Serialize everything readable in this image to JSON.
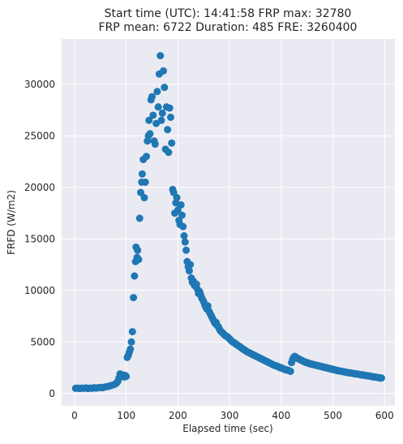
{
  "chart_data": {
    "type": "scatter",
    "title_line1": "Start time (UTC): 14:41:58 FRP max: 32780",
    "title_line2": "FRP mean: 6722 Duration: 485 FRE: 3260400",
    "xlabel": "Elapsed time (sec)",
    "ylabel": "FRFD (W/m2)",
    "xlim": [
      -25,
      620
    ],
    "ylim": [
      -1200,
      34400
    ],
    "xticks": [
      0,
      100,
      200,
      300,
      400,
      500,
      600
    ],
    "yticks": [
      0,
      5000,
      10000,
      15000,
      20000,
      25000,
      30000
    ],
    "grid": true,
    "marker_color": "#1f77b4",
    "background_color": "#eaeaf2",
    "points": [
      [
        2,
        500
      ],
      [
        6,
        520
      ],
      [
        10,
        480
      ],
      [
        14,
        520
      ],
      [
        18,
        500
      ],
      [
        22,
        540
      ],
      [
        26,
        480
      ],
      [
        30,
        520
      ],
      [
        34,
        500
      ],
      [
        38,
        560
      ],
      [
        42,
        520
      ],
      [
        46,
        560
      ],
      [
        50,
        580
      ],
      [
        54,
        560
      ],
      [
        58,
        620
      ],
      [
        62,
        660
      ],
      [
        66,
        700
      ],
      [
        70,
        760
      ],
      [
        74,
        820
      ],
      [
        78,
        900
      ],
      [
        81,
        1000
      ],
      [
        84,
        1200
      ],
      [
        86,
        1500
      ],
      [
        88,
        1900
      ],
      [
        90,
        1700
      ],
      [
        93,
        1800
      ],
      [
        96,
        1600
      ],
      [
        98,
        1750
      ],
      [
        100,
        1650
      ],
      [
        102,
        3500
      ],
      [
        104,
        3700
      ],
      [
        106,
        4000
      ],
      [
        108,
        4300
      ],
      [
        110,
        5000
      ],
      [
        112,
        6000
      ],
      [
        114,
        9300
      ],
      [
        116,
        11400
      ],
      [
        118,
        12800
      ],
      [
        119,
        14200
      ],
      [
        121,
        13200
      ],
      [
        122,
        13900
      ],
      [
        124,
        13000
      ],
      [
        126,
        17000
      ],
      [
        128,
        19500
      ],
      [
        130,
        20500
      ],
      [
        131,
        21300
      ],
      [
        133,
        22700
      ],
      [
        135,
        19000
      ],
      [
        137,
        20500
      ],
      [
        139,
        23000
      ],
      [
        141,
        24500
      ],
      [
        143,
        25000
      ],
      [
        144,
        26500
      ],
      [
        146,
        25200
      ],
      [
        148,
        28500
      ],
      [
        150,
        28800
      ],
      [
        152,
        27000
      ],
      [
        154,
        24500
      ],
      [
        156,
        24200
      ],
      [
        158,
        26200
      ],
      [
        160,
        29300
      ],
      [
        162,
        27800
      ],
      [
        164,
        31000
      ],
      [
        166,
        32780
      ],
      [
        168,
        26500
      ],
      [
        170,
        27200
      ],
      [
        172,
        31300
      ],
      [
        174,
        29700
      ],
      [
        176,
        23700
      ],
      [
        178,
        27800
      ],
      [
        180,
        25600
      ],
      [
        182,
        23400
      ],
      [
        184,
        27700
      ],
      [
        186,
        26800
      ],
      [
        188,
        24300
      ],
      [
        190,
        19800
      ],
      [
        192,
        19500
      ],
      [
        194,
        17500
      ],
      [
        196,
        18500
      ],
      [
        198,
        19000
      ],
      [
        200,
        17800
      ],
      [
        202,
        16800
      ],
      [
        204,
        16400
      ],
      [
        206,
        18300
      ],
      [
        208,
        17300
      ],
      [
        210,
        16200
      ],
      [
        212,
        15300
      ],
      [
        214,
        14700
      ],
      [
        216,
        13900
      ],
      [
        218,
        12800
      ],
      [
        220,
        12300
      ],
      [
        222,
        11900
      ],
      [
        224,
        12500
      ],
      [
        226,
        11200
      ],
      [
        228,
        10800
      ],
      [
        230,
        10900
      ],
      [
        232,
        10500
      ],
      [
        234,
        10400
      ],
      [
        236,
        10600
      ],
      [
        238,
        10100
      ],
      [
        240,
        9700
      ],
      [
        242,
        9900
      ],
      [
        244,
        9600
      ],
      [
        246,
        9300
      ],
      [
        248,
        9100
      ],
      [
        250,
        8900
      ],
      [
        252,
        8600
      ],
      [
        254,
        8400
      ],
      [
        256,
        8200
      ],
      [
        258,
        8500
      ],
      [
        260,
        8000
      ],
      [
        262,
        7800
      ],
      [
        264,
        7600
      ],
      [
        266,
        7400
      ],
      [
        268,
        7200
      ],
      [
        270,
        7000
      ],
      [
        272,
        6800
      ],
      [
        274,
        6900
      ],
      [
        276,
        6600
      ],
      [
        278,
        6500
      ],
      [
        280,
        6300
      ],
      [
        282,
        6100
      ],
      [
        284,
        6000
      ],
      [
        286,
        5900
      ],
      [
        288,
        5800
      ],
      [
        290,
        5700
      ],
      [
        292,
        5600
      ],
      [
        294,
        5550
      ],
      [
        296,
        5500
      ],
      [
        298,
        5400
      ],
      [
        300,
        5300
      ],
      [
        302,
        5200
      ],
      [
        304,
        5100
      ],
      [
        306,
        5000
      ],
      [
        308,
        4950
      ],
      [
        310,
        4900
      ],
      [
        312,
        4800
      ],
      [
        314,
        4750
      ],
      [
        316,
        4650
      ],
      [
        318,
        4600
      ],
      [
        320,
        4550
      ],
      [
        322,
        4450
      ],
      [
        324,
        4400
      ],
      [
        326,
        4300
      ],
      [
        328,
        4250
      ],
      [
        330,
        4200
      ],
      [
        332,
        4100
      ],
      [
        334,
        4050
      ],
      [
        336,
        4000
      ],
      [
        338,
        3950
      ],
      [
        340,
        3900
      ],
      [
        342,
        3850
      ],
      [
        344,
        3800
      ],
      [
        346,
        3750
      ],
      [
        348,
        3700
      ],
      [
        350,
        3650
      ],
      [
        352,
        3600
      ],
      [
        354,
        3550
      ],
      [
        356,
        3500
      ],
      [
        358,
        3450
      ],
      [
        360,
        3400
      ],
      [
        362,
        3350
      ],
      [
        364,
        3300
      ],
      [
        366,
        3250
      ],
      [
        368,
        3200
      ],
      [
        370,
        3150
      ],
      [
        372,
        3100
      ],
      [
        374,
        3050
      ],
      [
        376,
        3000
      ],
      [
        378,
        2950
      ],
      [
        380,
        2900
      ],
      [
        382,
        2850
      ],
      [
        384,
        2800
      ],
      [
        386,
        2750
      ],
      [
        388,
        2700
      ],
      [
        390,
        2700
      ],
      [
        392,
        2650
      ],
      [
        394,
        2600
      ],
      [
        396,
        2550
      ],
      [
        398,
        2500
      ],
      [
        400,
        2500
      ],
      [
        402,
        2450
      ],
      [
        404,
        2400
      ],
      [
        406,
        2350
      ],
      [
        408,
        2300
      ],
      [
        410,
        2300
      ],
      [
        412,
        2250
      ],
      [
        414,
        2250
      ],
      [
        416,
        2200
      ],
      [
        418,
        2150
      ],
      [
        420,
        3000
      ],
      [
        422,
        3300
      ],
      [
        424,
        3500
      ],
      [
        426,
        3600
      ],
      [
        428,
        3550
      ],
      [
        430,
        3450
      ],
      [
        432,
        3400
      ],
      [
        434,
        3350
      ],
      [
        436,
        3300
      ],
      [
        438,
        3250
      ],
      [
        440,
        3200
      ],
      [
        442,
        3150
      ],
      [
        444,
        3100
      ],
      [
        446,
        3050
      ],
      [
        448,
        3000
      ],
      [
        450,
        3000
      ],
      [
        452,
        2950
      ],
      [
        454,
        2900
      ],
      [
        456,
        2900
      ],
      [
        458,
        2850
      ],
      [
        460,
        2850
      ],
      [
        462,
        2800
      ],
      [
        464,
        2800
      ],
      [
        466,
        2750
      ],
      [
        468,
        2750
      ],
      [
        470,
        2700
      ],
      [
        472,
        2700
      ],
      [
        474,
        2650
      ],
      [
        476,
        2650
      ],
      [
        478,
        2600
      ],
      [
        480,
        2600
      ],
      [
        482,
        2550
      ],
      [
        484,
        2550
      ],
      [
        486,
        2500
      ],
      [
        488,
        2500
      ],
      [
        490,
        2450
      ],
      [
        492,
        2450
      ],
      [
        494,
        2400
      ],
      [
        496,
        2400
      ],
      [
        498,
        2350
      ],
      [
        500,
        2350
      ],
      [
        502,
        2300
      ],
      [
        504,
        2300
      ],
      [
        506,
        2250
      ],
      [
        508,
        2250
      ],
      [
        510,
        2200
      ],
      [
        512,
        2200
      ],
      [
        514,
        2180
      ],
      [
        516,
        2160
      ],
      [
        518,
        2140
      ],
      [
        520,
        2120
      ],
      [
        522,
        2100
      ],
      [
        524,
        2080
      ],
      [
        526,
        2060
      ],
      [
        528,
        2040
      ],
      [
        530,
        2020
      ],
      [
        532,
        2000
      ],
      [
        534,
        2000
      ],
      [
        536,
        1980
      ],
      [
        538,
        1960
      ],
      [
        540,
        1940
      ],
      [
        542,
        1920
      ],
      [
        544,
        1900
      ],
      [
        546,
        1900
      ],
      [
        548,
        1880
      ],
      [
        550,
        1860
      ],
      [
        552,
        1840
      ],
      [
        554,
        1820
      ],
      [
        556,
        1800
      ],
      [
        558,
        1800
      ],
      [
        560,
        1780
      ],
      [
        562,
        1760
      ],
      [
        564,
        1740
      ],
      [
        566,
        1720
      ],
      [
        568,
        1700
      ],
      [
        570,
        1700
      ],
      [
        572,
        1680
      ],
      [
        574,
        1660
      ],
      [
        576,
        1640
      ],
      [
        578,
        1620
      ],
      [
        580,
        1600
      ],
      [
        582,
        1600
      ],
      [
        584,
        1580
      ],
      [
        586,
        1560
      ],
      [
        588,
        1540
      ],
      [
        590,
        1520
      ],
      [
        592,
        1500
      ],
      [
        594,
        1500
      ]
    ]
  }
}
